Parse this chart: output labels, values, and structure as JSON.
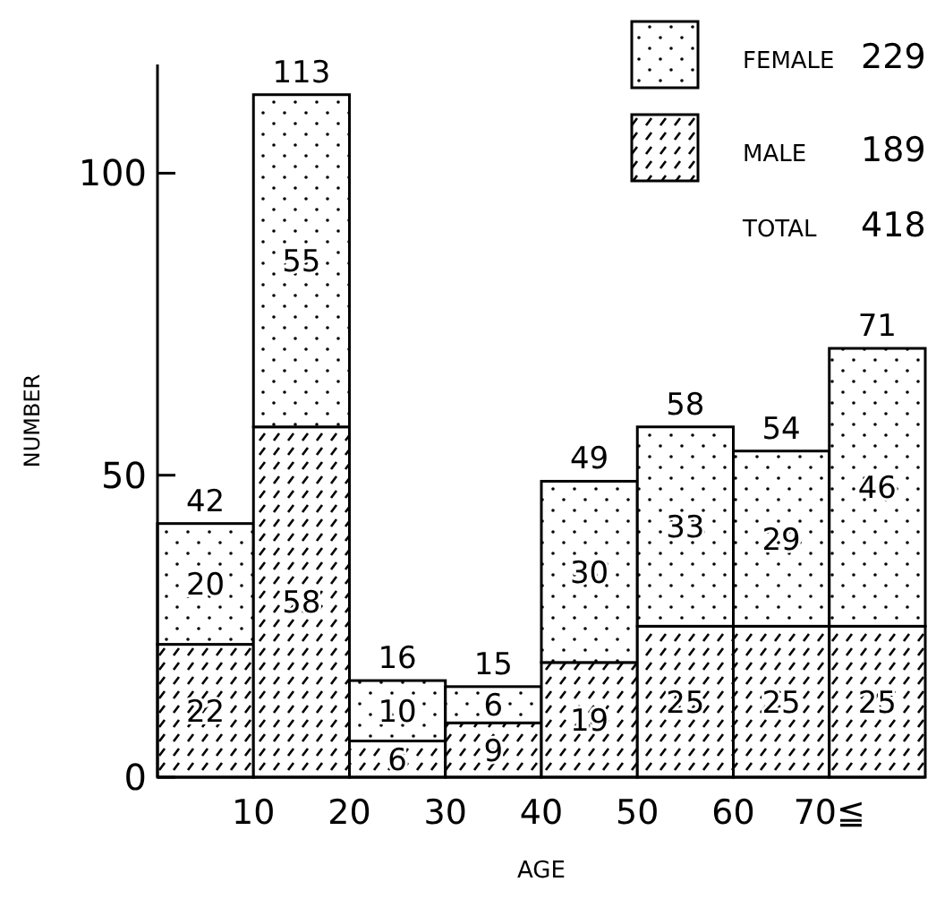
{
  "chart_data": {
    "type": "bar",
    "stacked": true,
    "xlabel": "AGE",
    "ylabel": "NUMBER",
    "x": [
      5,
      15,
      25,
      35,
      45,
      55,
      65,
      75
    ],
    "series": [
      {
        "name": "MALE 189",
        "color": "#000000",
        "values": [
          22,
          58,
          6,
          9,
          19,
          25,
          25,
          25
        ]
      },
      {
        "name": "FEMALE 229",
        "color": "#000000",
        "values": [
          20,
          55,
          10,
          6,
          30,
          33,
          29,
          46
        ]
      }
    ],
    "totals": [
      "42",
      "113",
      "16",
      "15",
      "49",
      "58",
      "54",
      "71"
    ],
    "data_labels": true,
    "xlim": [
      0,
      80
    ],
    "xticks": [
      10,
      20,
      30,
      40,
      50,
      60,
      {
        "value": 70,
        "label": "70≦"
      }
    ],
    "ylim": [
      0,
      118
    ],
    "yticks": [
      0,
      50,
      100
    ],
    "legend": "top right",
    "annotations": [
      "TOTAL 418"
    ]
  }
}
